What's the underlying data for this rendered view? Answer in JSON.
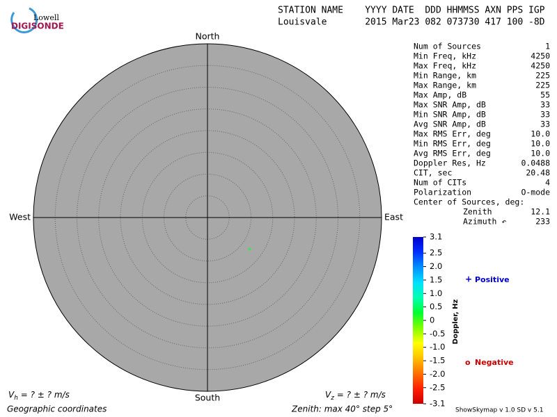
{
  "logo": {
    "top": "Lowell",
    "bottom": "DIGISONDE"
  },
  "header": {
    "line1": "STATION NAME    YYYY DATE  DDD HHMMSS AXN PPS IGP",
    "line2": "Louisvale       2015 Mar23 082 073730 417 100 -8D"
  },
  "stats": {
    "rows": [
      [
        "Num of Sources",
        "1"
      ],
      [
        "Min Freq, kHz",
        "4250"
      ],
      [
        "Max Freq, kHz",
        "4250"
      ],
      [
        "Min Range, km",
        "225"
      ],
      [
        "Max Range, km",
        "225"
      ],
      [
        "Max Amp, dB",
        "55"
      ],
      [
        "Max SNR Amp, dB",
        "33"
      ],
      [
        "Min SNR Amp, dB",
        "33"
      ],
      [
        "Avg SNR Amp, dB",
        "33"
      ],
      [
        "Max RMS Err, deg",
        "10.0"
      ],
      [
        "Min RMS Err, deg",
        "10.0"
      ],
      [
        "Avg RMS Err, deg",
        "10.0"
      ],
      [
        "Doppler Res, Hz",
        "0.0488"
      ],
      [
        "CIT, sec",
        "20.48"
      ],
      [
        "Num of CITs",
        "4"
      ],
      [
        "Polarization",
        "O-mode"
      ]
    ],
    "center_title": "Center of Sources, deg:",
    "center_rows": [
      [
        "Zenith",
        "12.1"
      ],
      [
        "Azimuth ↶",
        "233"
      ]
    ]
  },
  "chart_data": {
    "type": "polar",
    "directions": {
      "north": "North",
      "east": "East",
      "south": "South",
      "west": "West"
    },
    "rlim": [
      0,
      40
    ],
    "rticks": [
      5,
      10,
      15,
      20,
      25,
      30,
      35
    ],
    "points": [
      {
        "zenith": 12.1,
        "azimuth": 127,
        "doppler": 0.2
      }
    ],
    "colorbar": {
      "label": "Doppler, Hz",
      "clim": [
        -3.1,
        3.1
      ],
      "colors": [
        "#0000cc",
        "#0030ff",
        "#0090ff",
        "#00e0ff",
        "#00ffb0",
        "#00ff30",
        "#80ff00",
        "#ffff00",
        "#ffc000",
        "#ff7000",
        "#ff2000",
        "#cc0000"
      ],
      "ticks": [
        3.1,
        2.5,
        {
          "value": 2,
          "label": "2.0"
        },
        1.5,
        {
          "value": 1,
          "label": "1.0"
        },
        0.5,
        0,
        -0.5,
        {
          "value": -1,
          "label": "-1.0"
        },
        -1.5,
        {
          "value": -2,
          "label": "-2.0"
        },
        -2.5,
        -3.1
      ]
    },
    "legend": {
      "positive_marker": "+",
      "positive": "Positive",
      "negative_marker": "o",
      "negative": "Negative"
    },
    "vh": {
      "symbol": "V",
      "sub": "h",
      "text": " =  ? ±  ? m/s"
    },
    "vz": {
      "symbol": "V",
      "sub": "z",
      "text": " =  ? ±  ? m/s"
    },
    "coords": "Geographic coordinates",
    "zenith_caption": "Zenith: max 40°  step 5°",
    "version": "ShowSkymap v 1.0   SD v 5.1"
  }
}
